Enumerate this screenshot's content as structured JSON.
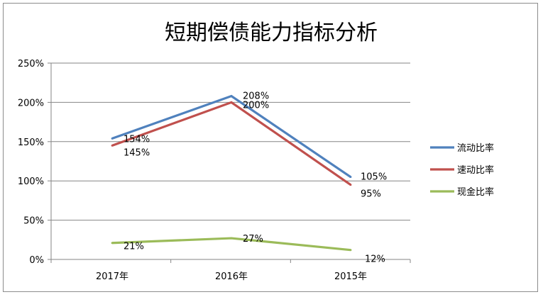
{
  "chart_data": {
    "type": "line",
    "title": "短期偿债能力指标分析",
    "categories": [
      "2017年",
      "2016年",
      "2015年"
    ],
    "ylim": [
      0,
      2.5
    ],
    "yticks": [
      "0%",
      "50%",
      "100%",
      "150%",
      "200%",
      "250%"
    ],
    "grid": true,
    "legend_position": "right",
    "series": [
      {
        "name": "流动比率",
        "color": "#4f81bd",
        "values": [
          1.54,
          2.08,
          1.05
        ],
        "labels": [
          "154%",
          "208%",
          "105%"
        ]
      },
      {
        "name": "速动比率",
        "color": "#c0504d",
        "values": [
          1.45,
          2.0,
          0.95
        ],
        "labels": [
          "145%",
          "200%",
          "95%"
        ]
      },
      {
        "name": "现金比率",
        "color": "#9bbb59",
        "values": [
          0.21,
          0.27,
          0.12
        ],
        "labels": [
          "21%",
          "27%",
          "12%"
        ]
      }
    ]
  }
}
